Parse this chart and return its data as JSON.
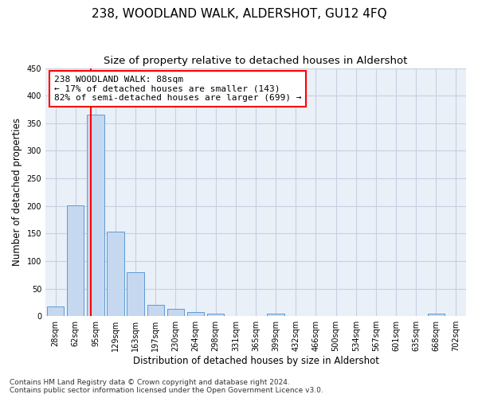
{
  "title": "238, WOODLAND WALK, ALDERSHOT, GU12 4FQ",
  "subtitle": "Size of property relative to detached houses in Aldershot",
  "xlabel": "Distribution of detached houses by size in Aldershot",
  "ylabel": "Number of detached properties",
  "bar_labels": [
    "28sqm",
    "62sqm",
    "95sqm",
    "129sqm",
    "163sqm",
    "197sqm",
    "230sqm",
    "264sqm",
    "298sqm",
    "331sqm",
    "365sqm",
    "399sqm",
    "432sqm",
    "466sqm",
    "500sqm",
    "534sqm",
    "567sqm",
    "601sqm",
    "635sqm",
    "668sqm",
    "702sqm"
  ],
  "bar_values": [
    17,
    201,
    366,
    154,
    79,
    21,
    14,
    8,
    5,
    0,
    0,
    5,
    0,
    0,
    0,
    0,
    0,
    0,
    0,
    5,
    0
  ],
  "bar_color": "#c5d8f0",
  "bar_edgecolor": "#5b9bd5",
  "vline_color": "red",
  "annotation_text": "238 WOODLAND WALK: 88sqm\n← 17% of detached houses are smaller (143)\n82% of semi-detached houses are larger (699) →",
  "annotation_box_edgecolor": "red",
  "ylim": [
    0,
    450
  ],
  "yticks": [
    0,
    50,
    100,
    150,
    200,
    250,
    300,
    350,
    400,
    450
  ],
  "footnote1": "Contains HM Land Registry data © Crown copyright and database right 2024.",
  "footnote2": "Contains public sector information licensed under the Open Government Licence v3.0.",
  "background_color": "#ffffff",
  "plot_bg_color": "#eaf0f8",
  "grid_color": "#c8cfe0",
  "title_fontsize": 11,
  "subtitle_fontsize": 9.5,
  "axis_label_fontsize": 8.5,
  "tick_fontsize": 7,
  "annotation_fontsize": 8,
  "footnote_fontsize": 6.5
}
